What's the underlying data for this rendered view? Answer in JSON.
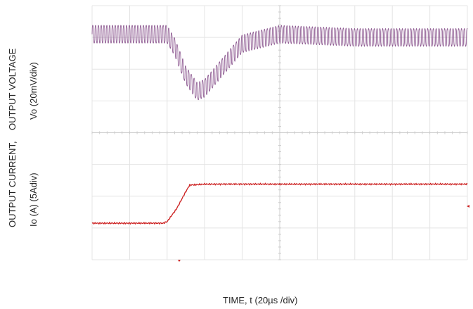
{
  "chart_data": [
    {
      "type": "line",
      "title": "",
      "ylabel": [
        "OUTPUT VOLTAGE",
        "Vo (20mV/div)"
      ],
      "xlabel": "TIME, t (20µs /div)",
      "grid": true,
      "x_divisions": 10,
      "y_divisions": 4,
      "y_offset_div": 0,
      "series": [
        {
          "color": "#7b3f7f",
          "ripple_div": 0.28,
          "ripple_period_div": 0.075,
          "x": [
            0,
            1.0,
            2.0,
            2.2,
            2.5,
            2.8,
            3.0,
            3.5,
            4.0,
            5.0,
            6.0,
            7.0,
            8.0,
            9.0,
            10.0
          ],
          "y": [
            3.1,
            3.1,
            3.1,
            2.7,
            1.8,
            1.3,
            1.4,
            2.1,
            2.8,
            3.1,
            3.05,
            3.0,
            3.0,
            3.0,
            3.0
          ]
        }
      ]
    },
    {
      "type": "line",
      "title": "",
      "ylabel": [
        "OUTPUT CURRENT,",
        "Io (A)  (5Adiv)"
      ],
      "xlabel": "TIME, t (20µs /div)",
      "grid": true,
      "x_divisions": 10,
      "y_divisions": 4,
      "y_offset_div": 4,
      "series": [
        {
          "color": "#cc2020",
          "x": [
            0,
            1.0,
            1.9,
            2.0,
            2.25,
            2.5,
            2.6,
            3.0,
            4.0,
            5.0,
            6.0,
            7.0,
            8.0,
            9.0,
            10.0
          ],
          "y": [
            1.15,
            1.15,
            1.15,
            1.2,
            1.6,
            2.15,
            2.35,
            2.38,
            2.38,
            2.38,
            2.38,
            2.38,
            2.38,
            2.38,
            2.38
          ]
        }
      ]
    }
  ],
  "labels": {
    "voltage_line1": "OUTPUT VOLTAGE",
    "voltage_line2": "Vo (20mV/div)",
    "current_line1": "OUTPUT CURRENT,",
    "current_line2": "Io (A)  (5Adiv)",
    "time": "TIME, t (20µs /div)"
  }
}
